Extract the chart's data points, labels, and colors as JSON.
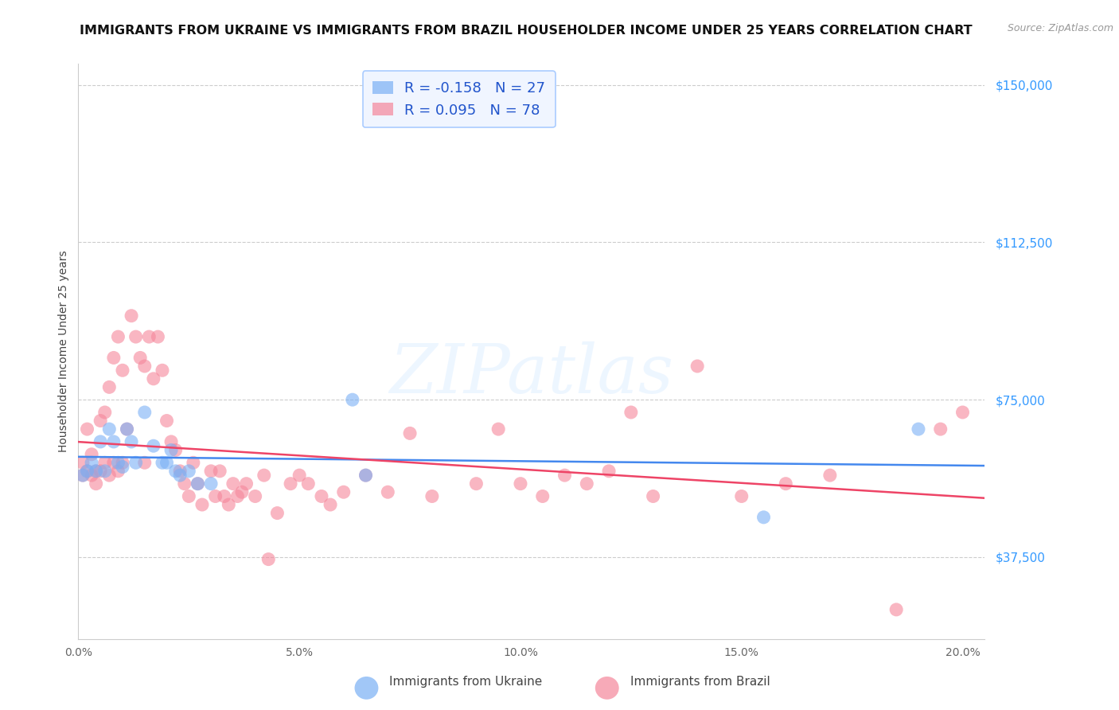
{
  "title": "IMMIGRANTS FROM UKRAINE VS IMMIGRANTS FROM BRAZIL HOUSEHOLDER INCOME UNDER 25 YEARS CORRELATION CHART",
  "source": "Source: ZipAtlas.com",
  "ylabel": "Householder Income Under 25 years",
  "xlim": [
    0.0,
    0.205
  ],
  "ylim": [
    18000,
    155000
  ],
  "yticks": [
    37500,
    75000,
    112500,
    150000
  ],
  "ytick_labels": [
    "$37,500",
    "$75,000",
    "$112,500",
    "$150,000"
  ],
  "xticks": [
    0.0,
    0.05,
    0.1,
    0.15,
    0.2
  ],
  "xtick_labels": [
    "0.0%",
    "5.0%",
    "10.0%",
    "15.0%",
    "20.0%"
  ],
  "background_color": "#ffffff",
  "grid_color": "#cccccc",
  "watermark_text": "ZIPatlas",
  "legend_ukraine_R": "-0.158",
  "legend_ukraine_N": "27",
  "legend_brazil_R": "0.095",
  "legend_brazil_N": "78",
  "ukraine_color": "#7ab0f5",
  "brazil_color": "#f5869a",
  "trend_ukraine_color": "#4488ee",
  "trend_brazil_color": "#ee4466",
  "ukraine_x": [
    0.001,
    0.002,
    0.003,
    0.004,
    0.005,
    0.006,
    0.007,
    0.008,
    0.009,
    0.01,
    0.011,
    0.012,
    0.013,
    0.015,
    0.017,
    0.019,
    0.02,
    0.021,
    0.022,
    0.023,
    0.025,
    0.027,
    0.03,
    0.062,
    0.065,
    0.155,
    0.19
  ],
  "ukraine_y": [
    57000,
    58000,
    60000,
    58000,
    65000,
    58000,
    68000,
    65000,
    60000,
    59000,
    68000,
    65000,
    60000,
    72000,
    64000,
    60000,
    60000,
    63000,
    58000,
    57000,
    58000,
    55000,
    55000,
    75000,
    57000,
    47000,
    68000
  ],
  "brazil_x": [
    0.001,
    0.001,
    0.002,
    0.002,
    0.003,
    0.003,
    0.004,
    0.004,
    0.005,
    0.005,
    0.006,
    0.006,
    0.007,
    0.007,
    0.008,
    0.008,
    0.009,
    0.009,
    0.01,
    0.01,
    0.011,
    0.012,
    0.013,
    0.014,
    0.015,
    0.015,
    0.016,
    0.017,
    0.018,
    0.019,
    0.02,
    0.021,
    0.022,
    0.023,
    0.024,
    0.025,
    0.026,
    0.027,
    0.028,
    0.03,
    0.031,
    0.032,
    0.033,
    0.034,
    0.035,
    0.036,
    0.037,
    0.038,
    0.04,
    0.042,
    0.043,
    0.045,
    0.048,
    0.05,
    0.052,
    0.055,
    0.057,
    0.06,
    0.065,
    0.07,
    0.075,
    0.08,
    0.09,
    0.095,
    0.1,
    0.105,
    0.11,
    0.115,
    0.12,
    0.125,
    0.13,
    0.14,
    0.15,
    0.16,
    0.17,
    0.185,
    0.195,
    0.2
  ],
  "brazil_y": [
    60000,
    57000,
    68000,
    58000,
    62000,
    57000,
    58000,
    55000,
    70000,
    58000,
    72000,
    60000,
    78000,
    57000,
    85000,
    60000,
    90000,
    58000,
    82000,
    60000,
    68000,
    95000,
    90000,
    85000,
    83000,
    60000,
    90000,
    80000,
    90000,
    82000,
    70000,
    65000,
    63000,
    58000,
    55000,
    52000,
    60000,
    55000,
    50000,
    58000,
    52000,
    58000,
    52000,
    50000,
    55000,
    52000,
    53000,
    55000,
    52000,
    57000,
    37000,
    48000,
    55000,
    57000,
    55000,
    52000,
    50000,
    53000,
    57000,
    53000,
    67000,
    52000,
    55000,
    68000,
    55000,
    52000,
    57000,
    55000,
    58000,
    72000,
    52000,
    83000,
    52000,
    55000,
    57000,
    25000,
    68000,
    72000
  ]
}
